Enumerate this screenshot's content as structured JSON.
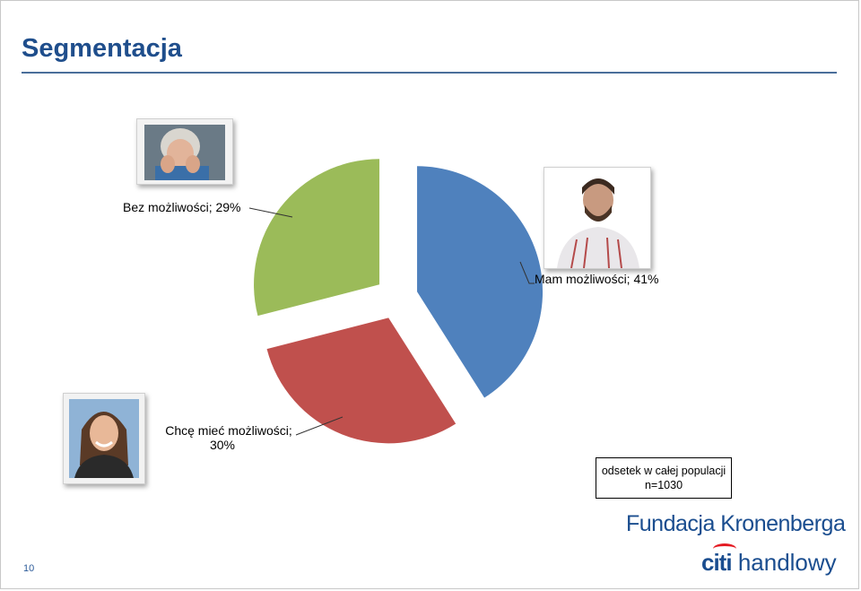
{
  "title": "Segmentacja",
  "page_number": "10",
  "chart_data": {
    "type": "pie",
    "slices": [
      {
        "name": "Mam możliwości",
        "value": 41,
        "color": "#4f81bd",
        "label": "Mam możliwości; 41%"
      },
      {
        "name": "Chcę mieć możliwości",
        "value": 30,
        "color": "#c0504d",
        "label_line1": "Chcę mieć możliwości;",
        "label_line2": "30%"
      },
      {
        "name": "Bez możliwości",
        "value": 29,
        "color": "#9bbb59",
        "label": "Bez możliwości; 29%"
      }
    ],
    "start_angle_deg": 0,
    "exploded": true
  },
  "note_box": {
    "line1": "odsetek w całej populacji",
    "line2": "n=1030"
  },
  "footer": {
    "foundation": "Fundacja Kronenberga",
    "brand_citi": "citi",
    "brand_rest": "handlowy"
  },
  "photos": {
    "bez": "elderly-woman-photo",
    "mam": "bearded-man-photo",
    "chce": "young-woman-photo"
  }
}
